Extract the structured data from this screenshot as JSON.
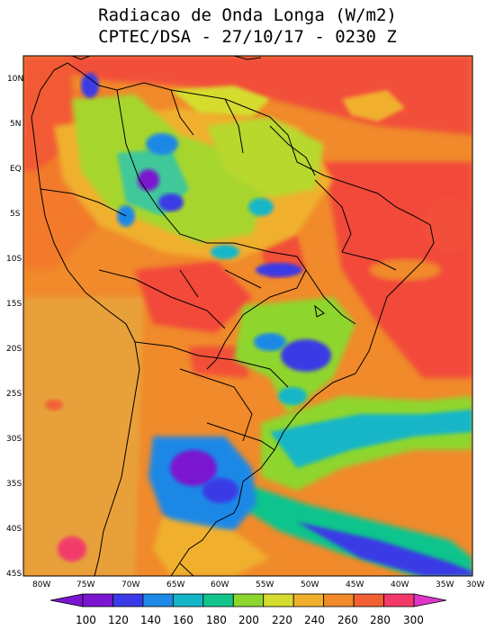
{
  "title": {
    "line1": "Radiacao de Onda Longa (W/m2)",
    "line2": "CPTEC/DSA - 27/10/17 - 0230 Z"
  },
  "map": {
    "lat_labels": [
      "10N",
      "5N",
      "EQ",
      "5S",
      "10S",
      "15S",
      "20S",
      "25S",
      "30S",
      "35S",
      "40S",
      "45S"
    ],
    "lon_labels": [
      "80W",
      "75W",
      "70W",
      "65W",
      "60W",
      "55W",
      "50W",
      "45W",
      "40W",
      "35W",
      "30W"
    ]
  },
  "colorbar": {
    "ticks": [
      "100",
      "120",
      "140",
      "160",
      "180",
      "200",
      "220",
      "240",
      "260",
      "280",
      "300"
    ],
    "colors": [
      "#7a16d0",
      "#3a3ae6",
      "#1e88e6",
      "#12b6c8",
      "#10c48c",
      "#8ed62e",
      "#d6dc2e",
      "#f0b02e",
      "#f08a2a",
      "#f26034",
      "#f23a6a"
    ]
  }
}
